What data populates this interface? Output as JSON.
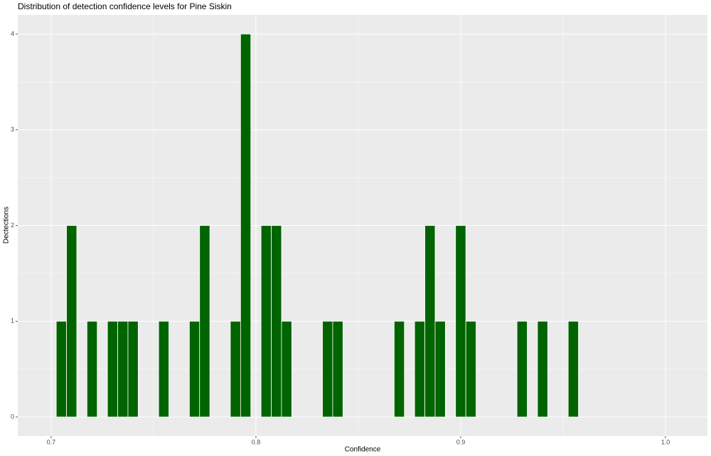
{
  "chart_data": {
    "type": "histogram",
    "title": "Distribution of detection confidence levels for Pine Siskin",
    "xlabel": "Confidence",
    "ylabel": "Dectections",
    "color": "#006400",
    "edgecolor": "#ffffff",
    "bins": [
      0.7025,
      0.7075,
      0.7125,
      0.7175,
      0.7225,
      0.7275,
      0.7325,
      0.7375,
      0.7425,
      0.7475,
      0.7525,
      0.7575,
      0.7625,
      0.7675,
      0.7725,
      0.7775,
      0.7825,
      0.7875,
      0.7925,
      0.7975,
      0.8025,
      0.8075,
      0.8125,
      0.8175,
      0.8225,
      0.8275,
      0.8325,
      0.8375,
      0.8425,
      0.8475,
      0.8525,
      0.8575,
      0.8625,
      0.8675,
      0.8725,
      0.8775,
      0.8825,
      0.8875,
      0.8925,
      0.8975,
      0.9025,
      0.9075,
      0.9125,
      0.9175,
      0.9225,
      0.9275,
      0.9325,
      0.9375,
      0.9425,
      0.9475,
      0.9525,
      0.9575
    ],
    "values": [
      1,
      2,
      0,
      1,
      0,
      1,
      1,
      1,
      0,
      0,
      1,
      0,
      0,
      1,
      2,
      0,
      0,
      1,
      4,
      0,
      2,
      2,
      1,
      0,
      0,
      0,
      1,
      1,
      0,
      0,
      0,
      0,
      0,
      1,
      0,
      1,
      2,
      1,
      0,
      2,
      1,
      0,
      0,
      0,
      0,
      1,
      0,
      1,
      0,
      0,
      1
    ],
    "xlim": [
      0.6837,
      1.0205
    ],
    "ylim": [
      -0.2,
      4.2
    ],
    "xticks": [
      0.7,
      0.8,
      0.9,
      {
        "value": 1,
        "label": "1.0"
      }
    ],
    "yticks": [
      0,
      1,
      2,
      3,
      4
    ],
    "grid": true
  }
}
